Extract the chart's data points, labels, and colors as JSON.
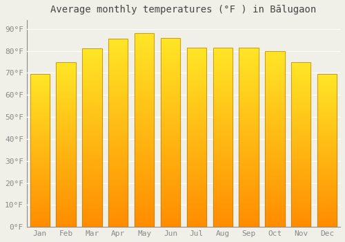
{
  "title": "Average monthly temperatures (°F ) in Bālugaon",
  "months": [
    "Jan",
    "Feb",
    "Mar",
    "Apr",
    "May",
    "Jun",
    "Jul",
    "Aug",
    "Sep",
    "Oct",
    "Nov",
    "Dec"
  ],
  "values": [
    69.5,
    75.0,
    81.0,
    85.5,
    88.0,
    86.0,
    81.5,
    81.5,
    81.5,
    80.0,
    75.0,
    69.5
  ],
  "bar_color": "#FFA500",
  "bar_edge_color": "#a07000",
  "background_color": "#f0f0e8",
  "plot_bg_color": "#f0f0e8",
  "grid_color": "#ffffff",
  "yticks": [
    0,
    10,
    20,
    30,
    40,
    50,
    60,
    70,
    80,
    90
  ],
  "ytick_labels": [
    "0°F",
    "10°F",
    "20°F",
    "30°F",
    "40°F",
    "50°F",
    "60°F",
    "70°F",
    "80°F",
    "90°F"
  ],
  "ylim": [
    0,
    94
  ],
  "title_fontsize": 10,
  "tick_fontsize": 8,
  "font_family": "monospace",
  "tick_color": "#888888",
  "title_color": "#444444"
}
